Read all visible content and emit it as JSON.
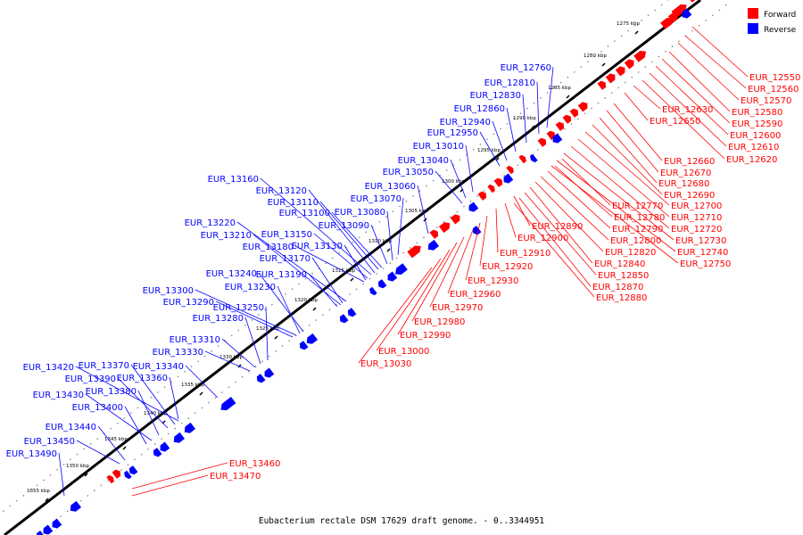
{
  "caption": "Eubacterium rectale DSM 17629 draft genome. - 0..3344951",
  "legend": [
    {
      "label": "Forward",
      "color": "#ff0000"
    },
    {
      "label": "Reverse",
      "color": "#0000ff"
    }
  ],
  "colors": {
    "forward": "#ff0000",
    "reverse": "#0000ff",
    "axis": "#000000"
  },
  "ticks": [
    "1275 kbp",
    "1280 kbp",
    "1285 kbp",
    "1290 kbp",
    "1295 kbp",
    "1300 kbp",
    "1305 kbp",
    "1310 kbp",
    "1315 kbp",
    "1320 kbp",
    "1325 kbp",
    "1330 kbp",
    "1335 kbp",
    "1340 kbp",
    "1345 kbp",
    "1350 kbp",
    "1355 kbp"
  ],
  "forward_genes": [
    "EUR_12550",
    "EUR_12560",
    "EUR_12570",
    "EUR_12580",
    "EUR_12590",
    "EUR_12600",
    "EUR_12610",
    "EUR_12620",
    "EUR_12630",
    "EUR_12650",
    "EUR_12660",
    "EUR_12670",
    "EUR_12680",
    "EUR_12690",
    "EUR_12700",
    "EUR_12710",
    "EUR_12720",
    "EUR_12730",
    "EUR_12740",
    "EUR_12750",
    "EUR_12770",
    "EUR_12780",
    "EUR_12790",
    "EUR_12800",
    "EUR_12820",
    "EUR_12840",
    "EUR_12850",
    "EUR_12870",
    "EUR_12880",
    "EUR_12890",
    "EUR_12900",
    "EUR_12910",
    "EUR_12920",
    "EUR_12930",
    "EUR_12960",
    "EUR_12970",
    "EUR_12980",
    "EUR_12990",
    "EUR_13000",
    "EUR_13030",
    "EUR_13460",
    "EUR_13470"
  ],
  "reverse_genes": [
    "EUR_12760",
    "EUR_12810",
    "EUR_12830",
    "EUR_12860",
    "EUR_12940",
    "EUR_12950",
    "EUR_13010",
    "EUR_13040",
    "EUR_13050",
    "EUR_13060",
    "EUR_13070",
    "EUR_13080",
    "EUR_13090",
    "EUR_13100",
    "EUR_13110",
    "EUR_13120",
    "EUR_13160",
    "EUR_13220",
    "EUR_13210",
    "EUR_13150",
    "EUR_13180",
    "EUR_13130",
    "EUR_13170",
    "EUR_13190",
    "EUR_13240",
    "EUR_13230",
    "EUR_13300",
    "EUR_13290",
    "EUR_13250",
    "EUR_13280",
    "EUR_13310",
    "EUR_13330",
    "EUR_13420",
    "EUR_13370",
    "EUR_13340",
    "EUR_13390",
    "EUR_13360",
    "EUR_13380",
    "EUR_13430",
    "EUR_13400",
    "EUR_13440",
    "EUR_13450",
    "EUR_13490"
  ]
}
